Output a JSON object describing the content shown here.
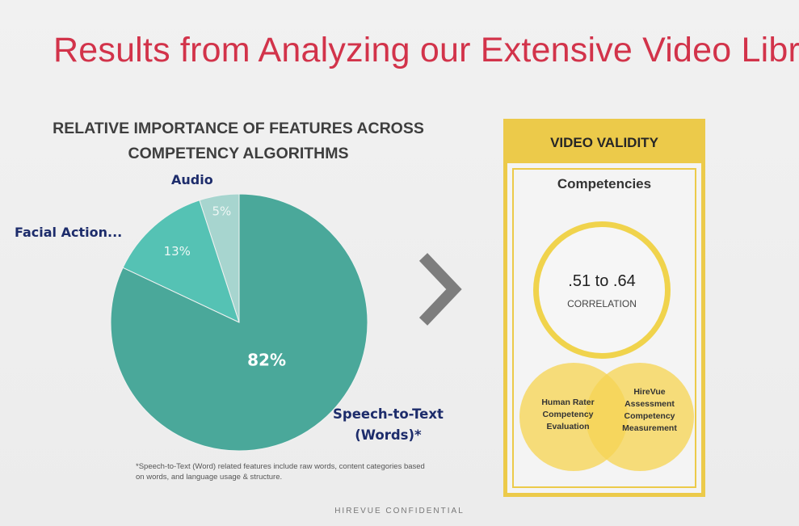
{
  "slide": {
    "title": "Results from Analyzing our Extensive Video Libr",
    "confidential": "HIREVUE CONFIDENTIAL"
  },
  "chart_data": {
    "type": "pie",
    "title_lines": [
      "RELATIVE IMPORTANCE OF FEATURES ACROSS",
      "COMPETENCY ALGORITHMS"
    ],
    "slices": [
      {
        "label": "Speech-to-Text (Words)*",
        "label_lines": [
          "Speech-to-Text",
          "(Words)*"
        ],
        "value": 82,
        "display": "82%",
        "color": "#4aa89a",
        "text_color": "#ffffff"
      },
      {
        "label": "Facial Action...",
        "value": 13,
        "display": "13%",
        "color": "#55c2b4",
        "text_color": "#eef8f6"
      },
      {
        "label": "Audio",
        "value": 5,
        "display": "5%",
        "color": "#a7d5cf",
        "text_color": "#eef6f4"
      }
    ],
    "footnote": "*Speech-to-Text (Word) related features include raw words, content categories based on words, and language usage & structure."
  },
  "validity": {
    "header": "VIDEO VALIDITY",
    "subheader": "Competencies",
    "correlation_value": ".51 to .64",
    "correlation_label": "CORRELATION",
    "venn_left": "Human Rater Competency Evaluation",
    "venn_right": "HireVue Assessment Competency Measurement"
  },
  "colors": {
    "title": "#d2334a",
    "accent": "#ecca4a",
    "label": "#1d2c6b"
  }
}
